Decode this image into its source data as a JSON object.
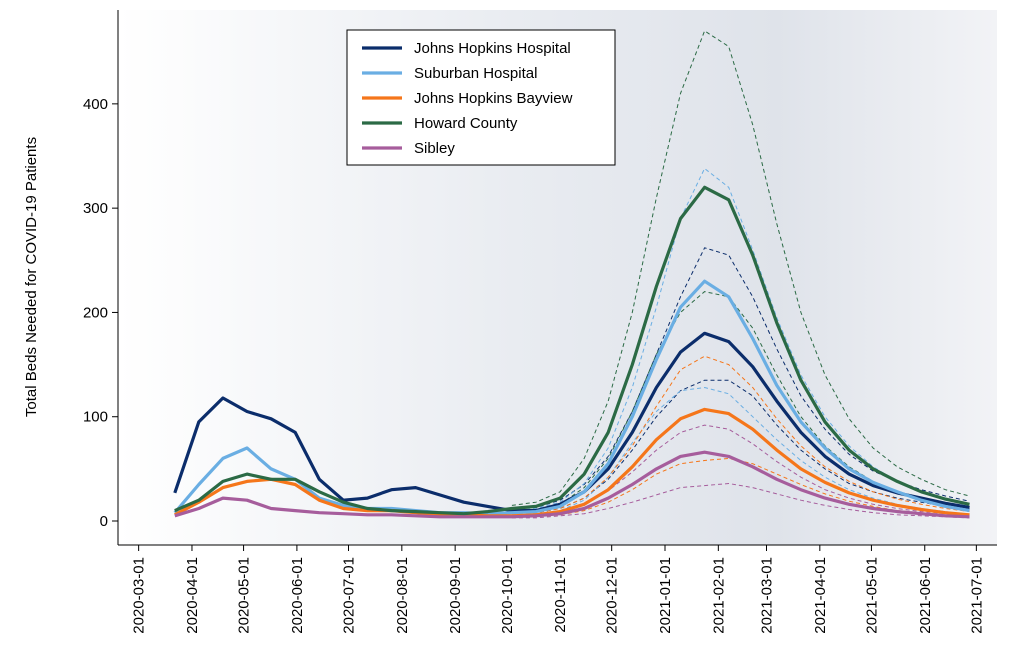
{
  "chart_data": {
    "type": "line",
    "y_label": "Total Beds Needed for COVID-19 Patients",
    "x": [
      "2020-03-22",
      "2020-04-05",
      "2020-04-19",
      "2020-05-03",
      "2020-05-17",
      "2020-05-31",
      "2020-06-14",
      "2020-06-28",
      "2020-07-12",
      "2020-07-26",
      "2020-08-09",
      "2020-08-23",
      "2020-09-06",
      "2020-09-20",
      "2020-10-04",
      "2020-10-18",
      "2020-11-01",
      "2020-11-15",
      "2020-11-29",
      "2020-12-13",
      "2020-12-27",
      "2021-01-10",
      "2021-01-24",
      "2021-02-07",
      "2021-02-21",
      "2021-03-07",
      "2021-03-21",
      "2021-04-04",
      "2021-04-18",
      "2021-05-02",
      "2021-05-16",
      "2021-05-30",
      "2021-06-13",
      "2021-06-27"
    ],
    "series": [
      {
        "name": "Johns Hopkins Hospital",
        "color": "#0b2d6b",
        "values": [
          27,
          95,
          118,
          105,
          98,
          85,
          40,
          20,
          22,
          30,
          32,
          25,
          18,
          14,
          10,
          10,
          16,
          28,
          50,
          85,
          128,
          162,
          180,
          172,
          148,
          115,
          85,
          62,
          45,
          34,
          27,
          22,
          17,
          13
        ],
        "upper": [
          null,
          null,
          null,
          null,
          null,
          null,
          null,
          null,
          null,
          null,
          null,
          null,
          null,
          null,
          12,
          13,
          20,
          35,
          62,
          105,
          160,
          215,
          262,
          255,
          215,
          165,
          120,
          88,
          64,
          48,
          38,
          30,
          24,
          19
        ],
        "lower": [
          null,
          null,
          null,
          null,
          null,
          null,
          null,
          null,
          null,
          null,
          null,
          null,
          null,
          null,
          8,
          8,
          12,
          22,
          40,
          68,
          100,
          125,
          135,
          135,
          120,
          92,
          68,
          50,
          36,
          28,
          22,
          18,
          14,
          10
        ]
      },
      {
        "name": "Suburban Hospital",
        "color": "#6aaee3",
        "values": [
          8,
          35,
          60,
          70,
          50,
          40,
          22,
          15,
          12,
          12,
          10,
          8,
          8,
          7,
          8,
          9,
          14,
          28,
          55,
          100,
          155,
          205,
          230,
          215,
          175,
          130,
          95,
          70,
          50,
          37,
          28,
          20,
          14,
          10
        ],
        "upper": [
          null,
          null,
          null,
          null,
          null,
          null,
          null,
          null,
          null,
          null,
          null,
          null,
          null,
          null,
          10,
          12,
          18,
          36,
          70,
          128,
          205,
          290,
          338,
          320,
          260,
          195,
          140,
          100,
          72,
          52,
          38,
          28,
          20,
          15
        ],
        "lower": [
          null,
          null,
          null,
          null,
          null,
          null,
          null,
          null,
          null,
          null,
          null,
          null,
          null,
          null,
          6,
          7,
          10,
          20,
          42,
          75,
          105,
          125,
          128,
          122,
          100,
          78,
          58,
          42,
          30,
          22,
          16,
          12,
          9,
          6
        ]
      },
      {
        "name": "Johns Hopkins Bayview",
        "color": "#f5761a",
        "values": [
          6,
          18,
          32,
          38,
          40,
          35,
          20,
          12,
          10,
          10,
          8,
          6,
          6,
          5,
          5,
          6,
          9,
          16,
          30,
          52,
          78,
          98,
          107,
          103,
          88,
          68,
          50,
          37,
          27,
          20,
          15,
          11,
          8,
          6
        ],
        "upper": [
          null,
          null,
          null,
          null,
          null,
          null,
          null,
          null,
          null,
          null,
          null,
          null,
          null,
          null,
          7,
          8,
          12,
          22,
          42,
          72,
          110,
          145,
          158,
          150,
          128,
          98,
          72,
          52,
          38,
          28,
          21,
          16,
          12,
          9
        ],
        "lower": [
          null,
          null,
          null,
          null,
          null,
          null,
          null,
          null,
          null,
          null,
          null,
          null,
          null,
          null,
          4,
          4,
          6,
          10,
          18,
          30,
          45,
          55,
          58,
          60,
          55,
          45,
          35,
          26,
          19,
          14,
          10,
          8,
          6,
          4
        ]
      },
      {
        "name": "Howard County",
        "color": "#2b6a45",
        "values": [
          10,
          20,
          38,
          45,
          40,
          40,
          28,
          18,
          12,
          10,
          9,
          8,
          7,
          9,
          12,
          14,
          22,
          45,
          85,
          150,
          225,
          290,
          320,
          308,
          255,
          190,
          135,
          95,
          68,
          50,
          38,
          28,
          21,
          16
        ],
        "upper": [
          null,
          null,
          null,
          null,
          null,
          null,
          null,
          null,
          null,
          null,
          null,
          null,
          null,
          null,
          15,
          18,
          28,
          60,
          115,
          200,
          310,
          410,
          470,
          455,
          380,
          285,
          200,
          140,
          98,
          70,
          52,
          40,
          30,
          24
        ],
        "lower": [
          null,
          null,
          null,
          null,
          null,
          null,
          null,
          null,
          null,
          null,
          null,
          null,
          null,
          null,
          9,
          11,
          16,
          32,
          60,
          105,
          160,
          200,
          220,
          215,
          185,
          140,
          100,
          72,
          52,
          38,
          28,
          21,
          16,
          12
        ]
      },
      {
        "name": "Sibley",
        "color": "#a65d9c",
        "values": [
          5,
          12,
          22,
          20,
          12,
          10,
          8,
          7,
          6,
          6,
          5,
          4,
          4,
          4,
          4,
          5,
          7,
          12,
          22,
          35,
          50,
          62,
          66,
          62,
          52,
          40,
          30,
          22,
          16,
          12,
          9,
          7,
          5,
          4
        ],
        "upper": [
          null,
          null,
          null,
          null,
          null,
          null,
          null,
          null,
          null,
          null,
          null,
          null,
          null,
          null,
          5,
          6,
          9,
          16,
          29,
          47,
          68,
          85,
          92,
          88,
          74,
          57,
          42,
          30,
          22,
          16,
          12,
          9,
          7,
          5
        ],
        "lower": [
          null,
          null,
          null,
          null,
          null,
          null,
          null,
          null,
          null,
          null,
          null,
          null,
          null,
          null,
          3,
          3,
          5,
          7,
          12,
          18,
          25,
          32,
          34,
          36,
          32,
          26,
          20,
          15,
          11,
          8,
          6,
          5,
          4,
          3
        ]
      }
    ],
    "xlim": [
      "2020-02-18",
      "2021-07-13"
    ],
    "xticks": [
      "2020-03-01",
      "2020-04-01",
      "2020-05-01",
      "2020-06-01",
      "2020-07-01",
      "2020-08-01",
      "2020-09-01",
      "2020-10-01",
      "2020-11-01",
      "2020-12-01",
      "2021-01-01",
      "2021-02-01",
      "2021-03-01",
      "2021-04-01",
      "2021-05-01",
      "2021-06-01",
      "2021-07-01"
    ],
    "ylim": [
      -23,
      490
    ],
    "yticks": [
      0,
      100,
      200,
      300,
      400
    ],
    "legend": "top"
  }
}
